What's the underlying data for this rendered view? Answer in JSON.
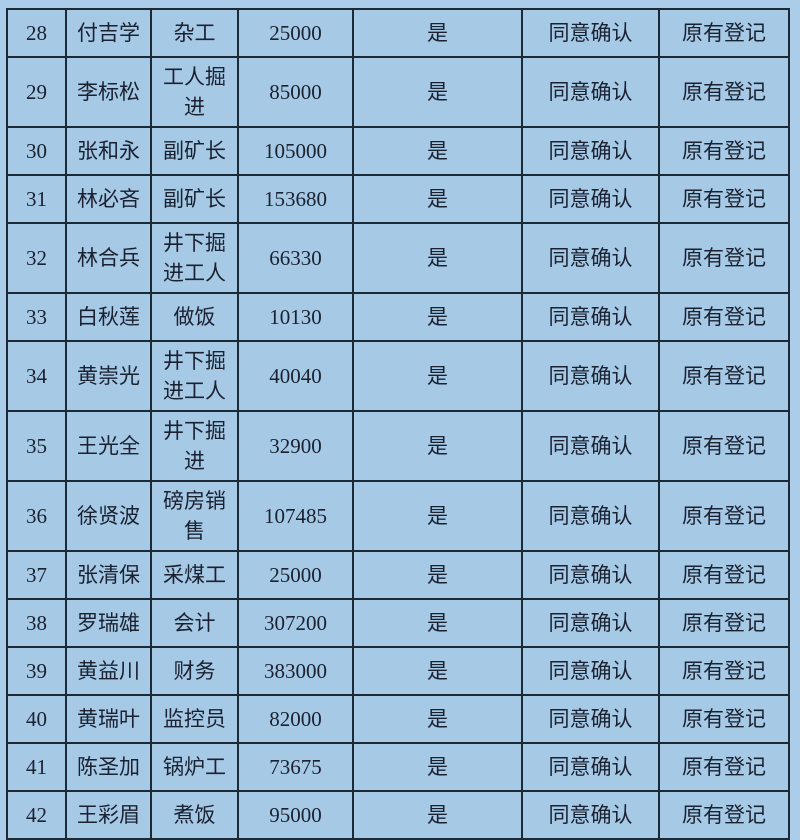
{
  "colors": {
    "page_background": "#abcdea",
    "cell_background": "#a6c9e6",
    "border": "#1c2936",
    "text": "#1a2130"
  },
  "table": {
    "rows": [
      {
        "no": "28",
        "name": "付吉学",
        "job": "杂工",
        "amount": "25000",
        "confirm": "是",
        "agree": "同意确认",
        "registration": "原有登记"
      },
      {
        "no": "29",
        "name": "李标松",
        "job": "工人掘进",
        "amount": "85000",
        "confirm": "是",
        "agree": "同意确认",
        "registration": "原有登记"
      },
      {
        "no": "30",
        "name": "张和永",
        "job": "副矿长",
        "amount": "105000",
        "confirm": "是",
        "agree": "同意确认",
        "registration": "原有登记"
      },
      {
        "no": "31",
        "name": "林必吝",
        "job": "副矿长",
        "amount": "153680",
        "confirm": "是",
        "agree": "同意确认",
        "registration": "原有登记"
      },
      {
        "no": "32",
        "name": "林合兵",
        "job": "井下掘进工人",
        "amount": "66330",
        "confirm": "是",
        "agree": "同意确认",
        "registration": "原有登记"
      },
      {
        "no": "33",
        "name": "白秋莲",
        "job": "做饭",
        "amount": "10130",
        "confirm": "是",
        "agree": "同意确认",
        "registration": "原有登记"
      },
      {
        "no": "34",
        "name": "黄崇光",
        "job": "井下掘进工人",
        "amount": "40040",
        "confirm": "是",
        "agree": "同意确认",
        "registration": "原有登记"
      },
      {
        "no": "35",
        "name": "王光全",
        "job": "井下掘进",
        "amount": "32900",
        "confirm": "是",
        "agree": "同意确认",
        "registration": "原有登记"
      },
      {
        "no": "36",
        "name": "徐贤波",
        "job": "磅房销售",
        "amount": "107485",
        "confirm": "是",
        "agree": "同意确认",
        "registration": "原有登记"
      },
      {
        "no": "37",
        "name": "张清保",
        "job": "采煤工",
        "amount": "25000",
        "confirm": "是",
        "agree": "同意确认",
        "registration": "原有登记"
      },
      {
        "no": "38",
        "name": "罗瑞雄",
        "job": "会计",
        "amount": "307200",
        "confirm": "是",
        "agree": "同意确认",
        "registration": "原有登记"
      },
      {
        "no": "39",
        "name": "黄益川",
        "job": "财务",
        "amount": "383000",
        "confirm": "是",
        "agree": "同意确认",
        "registration": "原有登记"
      },
      {
        "no": "40",
        "name": "黄瑞叶",
        "job": "监控员",
        "amount": "82000",
        "confirm": "是",
        "agree": "同意确认",
        "registration": "原有登记"
      },
      {
        "no": "41",
        "name": "陈圣加",
        "job": "锅炉工",
        "amount": "73675",
        "confirm": "是",
        "agree": "同意确认",
        "registration": "原有登记"
      },
      {
        "no": "42",
        "name": "王彩眉",
        "job": "煮饭",
        "amount": "95000",
        "confirm": "是",
        "agree": "同意确认",
        "registration": "原有登记"
      }
    ]
  }
}
